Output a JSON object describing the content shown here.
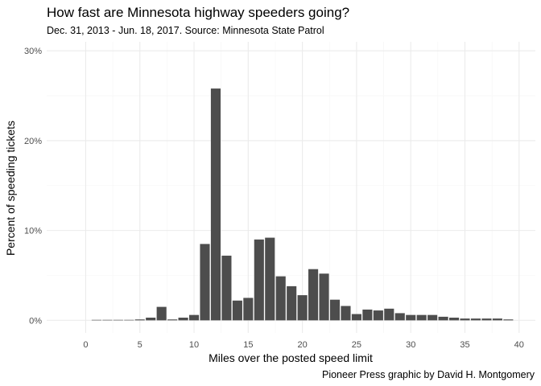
{
  "chart_data": {
    "type": "bar",
    "title": "How fast are Minnesota highway speeders going?",
    "subtitle": "Dec. 31, 2013 - Jun. 18, 2017. Source: Minnesota State Patrol",
    "caption": "Pioneer Press graphic by David H. Montgomery",
    "xlabel": "Miles over the posted speed limit",
    "ylabel": "Percent of speeding tickets",
    "x": [
      1,
      2,
      3,
      4,
      5,
      6,
      7,
      8,
      9,
      10,
      11,
      12,
      13,
      14,
      15,
      16,
      17,
      18,
      19,
      20,
      21,
      22,
      23,
      24,
      25,
      26,
      27,
      28,
      29,
      30,
      31,
      32,
      33,
      34,
      35,
      36,
      37,
      38,
      39
    ],
    "values": [
      0.01,
      0.02,
      0.03,
      0.05,
      0.1,
      0.3,
      1.5,
      0.1,
      0.3,
      0.6,
      8.5,
      25.8,
      7.2,
      2.2,
      2.5,
      9.0,
      9.2,
      4.9,
      3.8,
      2.8,
      5.7,
      5.2,
      2.3,
      1.6,
      0.7,
      1.2,
      1.1,
      1.3,
      0.8,
      0.6,
      0.6,
      0.6,
      0.4,
      0.3,
      0.2,
      0.2,
      0.2,
      0.2,
      0.1
    ],
    "xlim": [
      -3.6,
      41.5
    ],
    "ylim": [
      -1.4,
      31.0
    ],
    "x_ticks": [
      0,
      5,
      10,
      15,
      20,
      25,
      30,
      35,
      40
    ],
    "x_tick_labels": [
      "0",
      "5",
      "10",
      "15",
      "20",
      "25",
      "30",
      "35",
      "40"
    ],
    "y_ticks": [
      0,
      10,
      20,
      30
    ],
    "y_tick_labels": [
      "0%",
      "10%",
      "20%",
      "30%"
    ],
    "grid": true,
    "colors": {
      "bar": "#4d4d4d",
      "grid_major": "#ebebeb",
      "grid_minor": "#f5f5f5"
    }
  }
}
